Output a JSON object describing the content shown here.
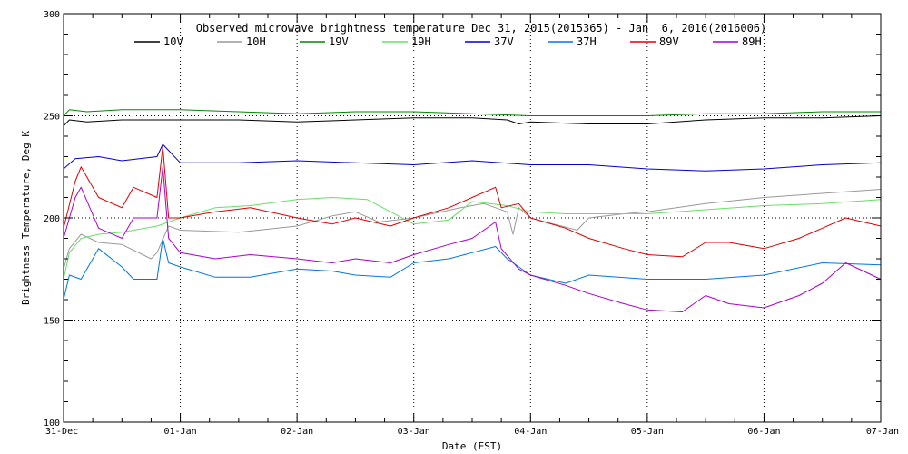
{
  "chart_data": {
    "type": "line",
    "title": "Observed microwave brightness temperature Dec 31, 2015(2015365) - Jan  6, 2016(2016006)",
    "xlabel": "Date (EST)",
    "ylabel": "Brightness Temperature, Deg K",
    "xlim": [
      0,
      7
    ],
    "ylim": [
      100,
      300
    ],
    "x_tick_values": [
      0,
      1,
      2,
      3,
      4,
      5,
      6,
      7
    ],
    "x_tick_labels": [
      "31-Dec",
      "01-Jan",
      "02-Jan",
      "03-Jan",
      "04-Jan",
      "05-Jan",
      "06-Jan",
      "07-Jan"
    ],
    "y_ticks": [
      100,
      150,
      200,
      250,
      300
    ],
    "grid": "dotted at major ticks",
    "legend": "top, horizontal",
    "series": [
      {
        "name": "10V",
        "color": "#000000",
        "x": [
          0,
          0.05,
          0.2,
          0.5,
          1,
          1.5,
          2,
          2.5,
          3,
          3.5,
          3.8,
          3.9,
          4,
          4.5,
          5,
          5.5,
          6,
          6.5,
          7
        ],
        "y": [
          245,
          248,
          247,
          248,
          248,
          248,
          247,
          248,
          249,
          249,
          248,
          246,
          247,
          246,
          246,
          248,
          249,
          249,
          250
        ]
      },
      {
        "name": "10H",
        "color": "#999999",
        "x": [
          0,
          0.05,
          0.15,
          0.3,
          0.5,
          0.75,
          0.8,
          0.9,
          1,
          1.5,
          2,
          2.3,
          2.5,
          2.7,
          3,
          3.4,
          3.6,
          3.8,
          3.85,
          3.9,
          4,
          4.2,
          4.4,
          4.5,
          4.8,
          5,
          5.5,
          6,
          6.5,
          7
        ],
        "y": [
          175,
          185,
          192,
          188,
          187,
          180,
          183,
          196,
          194,
          193,
          196,
          201,
          203,
          198,
          200,
          205,
          207,
          203,
          192,
          205,
          200,
          197,
          194,
          200,
          202,
          203,
          207,
          210,
          212,
          214
        ]
      },
      {
        "name": "19V",
        "color": "#008800",
        "x": [
          0,
          0.05,
          0.2,
          0.5,
          1,
          1.5,
          2,
          2.5,
          3,
          3.5,
          4,
          4.5,
          5,
          5.5,
          6,
          6.5,
          7
        ],
        "y": [
          250,
          253,
          252,
          253,
          253,
          252,
          251,
          252,
          252,
          251,
          250,
          250,
          250,
          251,
          251,
          252,
          252
        ]
      },
      {
        "name": "19H",
        "color": "#66e066",
        "x": [
          0,
          0.05,
          0.15,
          0.3,
          0.5,
          0.8,
          1,
          1.3,
          1.6,
          2,
          2.3,
          2.6,
          3,
          3.3,
          3.5,
          3.8,
          4,
          4.3,
          4.5,
          5,
          5.5,
          6,
          6.5,
          7
        ],
        "y": [
          170,
          183,
          190,
          192,
          193,
          196,
          200,
          205,
          206,
          209,
          210,
          209,
          197,
          199,
          208,
          206,
          203,
          202,
          202,
          202,
          204,
          206,
          207,
          209
        ]
      },
      {
        "name": "37V",
        "color": "#0000cc",
        "x": [
          0,
          0.1,
          0.3,
          0.5,
          0.8,
          0.85,
          1,
          1.5,
          2,
          2.5,
          3,
          3.5,
          4,
          4.5,
          5,
          5.5,
          6,
          6.5,
          7
        ],
        "y": [
          224,
          229,
          230,
          228,
          230,
          236,
          227,
          227,
          228,
          227,
          226,
          228,
          226,
          226,
          224,
          223,
          224,
          226,
          227
        ]
      },
      {
        "name": "37H",
        "color": "#0077dd",
        "x": [
          0,
          0.05,
          0.15,
          0.3,
          0.5,
          0.6,
          0.8,
          0.85,
          0.9,
          1,
          1.3,
          1.6,
          2,
          2.3,
          2.5,
          2.8,
          3,
          3.3,
          3.5,
          3.7,
          3.8,
          4,
          4.3,
          4.5,
          5,
          5.5,
          6,
          6.5,
          7
        ],
        "y": [
          160,
          172,
          170,
          185,
          176,
          170,
          170,
          190,
          178,
          176,
          171,
          171,
          175,
          174,
          172,
          171,
          178,
          180,
          183,
          186,
          180,
          172,
          168,
          172,
          170,
          170,
          172,
          178,
          177
        ]
      },
      {
        "name": "89V",
        "color": "#dd0000",
        "x": [
          0,
          0.1,
          0.15,
          0.3,
          0.5,
          0.6,
          0.8,
          0.85,
          0.9,
          1,
          1.3,
          1.6,
          2,
          2.3,
          2.5,
          2.8,
          3,
          3.3,
          3.5,
          3.7,
          3.75,
          3.9,
          4,
          4.3,
          4.5,
          4.8,
          5,
          5.3,
          5.5,
          5.7,
          6,
          6.3,
          6.5,
          6.7,
          7
        ],
        "y": [
          195,
          218,
          225,
          210,
          205,
          215,
          210,
          235,
          200,
          200,
          203,
          205,
          200,
          197,
          200,
          196,
          200,
          205,
          210,
          215,
          205,
          207,
          200,
          195,
          190,
          185,
          182,
          181,
          188,
          188,
          185,
          190,
          195,
          200,
          196
        ]
      },
      {
        "name": "89H",
        "color": "#aa00cc",
        "x": [
          0,
          0.1,
          0.15,
          0.3,
          0.5,
          0.6,
          0.8,
          0.85,
          0.9,
          1,
          1.3,
          1.6,
          2,
          2.3,
          2.5,
          2.8,
          3,
          3.3,
          3.5,
          3.7,
          3.75,
          3.9,
          4,
          4.3,
          4.5,
          4.8,
          5,
          5.3,
          5.5,
          5.7,
          6,
          6.3,
          6.5,
          6.7,
          7
        ],
        "y": [
          190,
          210,
          215,
          195,
          190,
          200,
          200,
          225,
          190,
          183,
          180,
          182,
          180,
          178,
          180,
          178,
          182,
          187,
          190,
          198,
          185,
          175,
          172,
          167,
          163,
          158,
          155,
          154,
          162,
          158,
          156,
          162,
          168,
          178,
          170
        ]
      }
    ]
  }
}
